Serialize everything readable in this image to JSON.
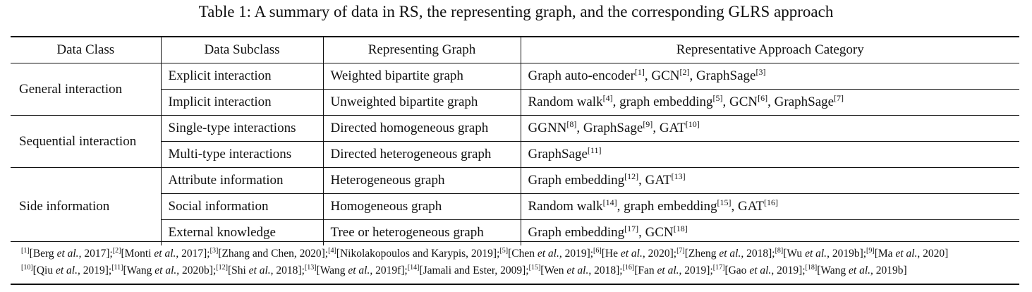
{
  "title": "Table 1: A summary of data in RS, the representing graph, and the corresponding GLRS approach",
  "table": {
    "header": [
      "Data Class",
      "Data Subclass",
      "Representing Graph",
      "Representative Approach Category"
    ],
    "groups": [
      {
        "class": "General interaction",
        "rows": [
          {
            "subclass": "Explicit interaction",
            "graph": "Weighted bipartite graph",
            "approach": [
              [
                "Graph auto-encoder",
                "[1]"
              ],
              [
                ", GCN",
                "[2]"
              ],
              [
                ", GraphSage",
                "[3]"
              ]
            ]
          },
          {
            "subclass": "Implicit interaction",
            "graph": "Unweighted bipartite graph",
            "approach": [
              [
                "Random walk",
                "[4]"
              ],
              [
                ", graph embedding",
                "[5]"
              ],
              [
                ", GCN",
                "[6]"
              ],
              [
                ", GraphSage",
                "[7]"
              ]
            ]
          }
        ]
      },
      {
        "class": "Sequential interaction",
        "rows": [
          {
            "subclass": "Single-type interactions",
            "graph": "Directed homogeneous graph",
            "approach": [
              [
                "GGNN",
                "[8]"
              ],
              [
                ", GraphSage",
                "[9]"
              ],
              [
                ", GAT",
                "[10]"
              ]
            ]
          },
          {
            "subclass": "Multi-type interactions",
            "graph": "Directed heterogeneous graph",
            "approach": [
              [
                "GraphSage",
                "[11]"
              ]
            ]
          }
        ]
      },
      {
        "class": "Side information",
        "rows": [
          {
            "subclass": "Attribute information",
            "graph": "Heterogeneous graph",
            "approach": [
              [
                "Graph embedding",
                "[12]"
              ],
              [
                ", GAT",
                "[13]"
              ]
            ]
          },
          {
            "subclass": "Social information",
            "graph": "Homogeneous graph",
            "approach": [
              [
                "Random walk",
                "[14]"
              ],
              [
                ", graph embedding",
                "[15]"
              ],
              [
                ", GAT",
                "[16]"
              ]
            ]
          },
          {
            "subclass": "External knowledge",
            "graph": "Tree or heterogeneous graph",
            "approach": [
              [
                "Graph embedding",
                "[17]"
              ],
              [
                ", GCN",
                "[18]"
              ]
            ]
          }
        ]
      }
    ]
  },
  "footnotes": [
    [
      {
        "sup": "[1]"
      },
      {
        "t": "[Berg "
      },
      {
        "i": "et al."
      },
      {
        "t": ", 2017];"
      },
      {
        "sup": "[2]"
      },
      {
        "t": "[Monti "
      },
      {
        "i": "et al."
      },
      {
        "t": ", 2017];"
      },
      {
        "sup": "[3]"
      },
      {
        "t": "[Zhang and Chen, 2020];"
      },
      {
        "sup": "[4]"
      },
      {
        "t": "[Nikolakopoulos and Karypis, 2019];"
      },
      {
        "sup": "[5]"
      },
      {
        "t": "[Chen "
      },
      {
        "i": "et al."
      },
      {
        "t": ", 2019];"
      },
      {
        "sup": "[6]"
      },
      {
        "t": "[He "
      },
      {
        "i": "et al."
      },
      {
        "t": ", 2020];"
      },
      {
        "sup": "[7]"
      },
      {
        "t": "[Zheng "
      },
      {
        "i": "et al."
      },
      {
        "t": ", 2018];"
      },
      {
        "sup": "[8]"
      },
      {
        "t": "[Wu "
      },
      {
        "i": "et al."
      },
      {
        "t": ", 2019b];"
      },
      {
        "sup": "[9]"
      },
      {
        "t": "[Ma "
      },
      {
        "i": "et al."
      },
      {
        "t": ", 2020]"
      }
    ],
    [
      {
        "sup": "[10]"
      },
      {
        "t": "[Qiu "
      },
      {
        "i": "et al."
      },
      {
        "t": ", 2019];"
      },
      {
        "sup": "[11]"
      },
      {
        "t": "[Wang "
      },
      {
        "i": "et al."
      },
      {
        "t": ", 2020b];"
      },
      {
        "sup": "[12]"
      },
      {
        "t": "[Shi "
      },
      {
        "i": "et al."
      },
      {
        "t": ", 2018];"
      },
      {
        "sup": "[13]"
      },
      {
        "t": "[Wang "
      },
      {
        "i": "et al."
      },
      {
        "t": ", 2019f];"
      },
      {
        "sup": "[14]"
      },
      {
        "t": "[Jamali and Ester, 2009];"
      },
      {
        "sup": "[15]"
      },
      {
        "t": "[Wen "
      },
      {
        "i": "et al."
      },
      {
        "t": ", 2018];"
      },
      {
        "sup": "[16]"
      },
      {
        "t": "[Fan "
      },
      {
        "i": "et al."
      },
      {
        "t": ", 2019];"
      },
      {
        "sup": "[17]"
      },
      {
        "t": "[Gao "
      },
      {
        "i": "et al."
      },
      {
        "t": ", 2019];"
      },
      {
        "sup": "[18]"
      },
      {
        "t": "[Wang "
      },
      {
        "i": "et al."
      },
      {
        "t": ", 2019b]"
      }
    ]
  ]
}
